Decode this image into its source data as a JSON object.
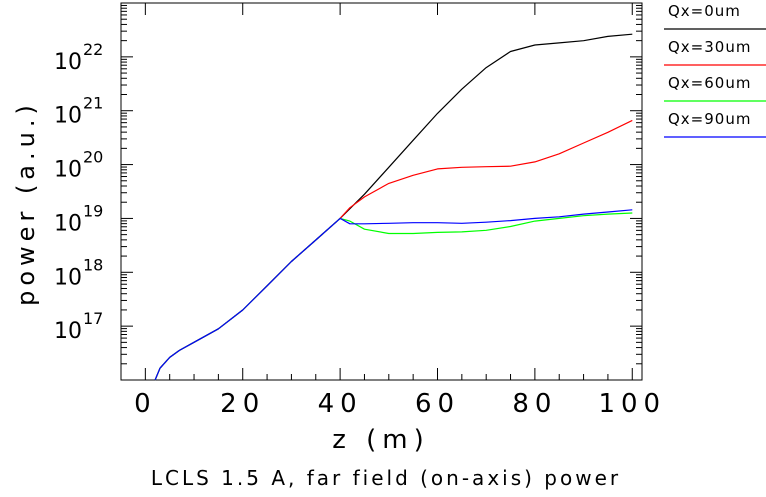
{
  "chart_data": {
    "type": "line",
    "title": "LCLS 1.5 A, far field (on-axis) power",
    "xlabel": "z (m)",
    "ylabel": "power (a.u.)",
    "xlim": [
      -5,
      102
    ],
    "ylim_log10": [
      16.0,
      23.0
    ],
    "yscale": "log",
    "grid": false,
    "legend_position": "right, outside plot",
    "x_ticks": [
      0,
      20,
      40,
      60,
      80,
      100
    ],
    "y_ticks": [
      {
        "base": "10",
        "exp": "17",
        "value_log10": 17
      },
      {
        "base": "10",
        "exp": "18",
        "value_log10": 18
      },
      {
        "base": "10",
        "exp": "19",
        "value_log10": 19
      },
      {
        "base": "10",
        "exp": "20",
        "value_log10": 20
      },
      {
        "base": "10",
        "exp": "21",
        "value_log10": 21
      },
      {
        "base": "10",
        "exp": "22",
        "value_log10": 22
      }
    ],
    "series": [
      {
        "name": "Qx=0um",
        "color": "#000000",
        "x": [
          2,
          3,
          5,
          7,
          10,
          15,
          20,
          25,
          30,
          35,
          40,
          45,
          50,
          55,
          60,
          65,
          70,
          75,
          80,
          85,
          90,
          95,
          100
        ],
        "log10": [
          16.0,
          16.22,
          16.42,
          16.55,
          16.7,
          16.95,
          17.3,
          17.75,
          18.2,
          18.6,
          19.0,
          19.45,
          19.95,
          20.45,
          20.95,
          21.4,
          21.8,
          22.1,
          22.22,
          22.26,
          22.3,
          22.38,
          22.42
        ]
      },
      {
        "name": "Qx=30um",
        "color": "#ff0000",
        "x": [
          2,
          3,
          5,
          7,
          10,
          15,
          20,
          25,
          30,
          35,
          40,
          42,
          45,
          50,
          55,
          60,
          65,
          70,
          75,
          80,
          85,
          90,
          95,
          100
        ],
        "log10": [
          16.0,
          16.22,
          16.42,
          16.55,
          16.7,
          16.95,
          17.3,
          17.75,
          18.2,
          18.6,
          19.0,
          19.2,
          19.4,
          19.65,
          19.8,
          19.92,
          19.95,
          19.96,
          19.97,
          20.05,
          20.2,
          20.4,
          20.6,
          20.82
        ]
      },
      {
        "name": "Qx=60um",
        "color": "#00ff00",
        "x": [
          2,
          3,
          5,
          7,
          10,
          15,
          20,
          25,
          30,
          35,
          40,
          42,
          45,
          50,
          55,
          60,
          65,
          70,
          75,
          80,
          85,
          90,
          95,
          100
        ],
        "log10": [
          16.0,
          16.22,
          16.42,
          16.55,
          16.7,
          16.95,
          17.3,
          17.75,
          18.2,
          18.6,
          19.0,
          18.95,
          18.8,
          18.72,
          18.72,
          18.74,
          18.75,
          18.78,
          18.85,
          18.95,
          19.0,
          19.05,
          19.08,
          19.1
        ]
      },
      {
        "name": "Qx=90um",
        "color": "#0000ff",
        "x": [
          2,
          3,
          5,
          7,
          10,
          15,
          20,
          25,
          30,
          35,
          40,
          42,
          45,
          50,
          55,
          60,
          65,
          70,
          75,
          80,
          85,
          90,
          95,
          100
        ],
        "log10": [
          16.0,
          16.22,
          16.42,
          16.55,
          16.7,
          16.95,
          17.3,
          17.75,
          18.2,
          18.6,
          19.0,
          18.9,
          18.9,
          18.91,
          18.92,
          18.92,
          18.91,
          18.93,
          18.96,
          19.0,
          19.03,
          19.08,
          19.12,
          19.16
        ]
      }
    ]
  }
}
